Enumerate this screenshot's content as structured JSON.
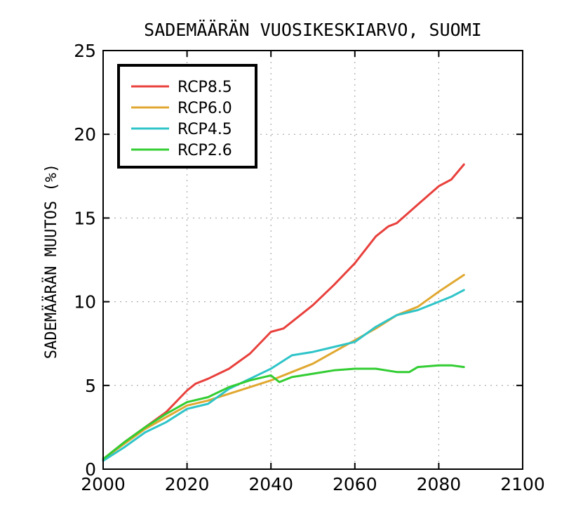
{
  "chart_data": {
    "type": "line",
    "title": "SADEMÄÄRÄN VUOSIKESKIARVO, SUOMI",
    "xlabel": "",
    "ylabel": "SADEMÄÄRÄN MUUTOS (%)",
    "xlim": [
      2000,
      2100
    ],
    "ylim": [
      0,
      25
    ],
    "xticks": [
      2000,
      2020,
      2040,
      2060,
      2080,
      2100
    ],
    "yticks": [
      0,
      5,
      10,
      15,
      20,
      25
    ],
    "grid": true,
    "legend_position": "top-left",
    "series": [
      {
        "name": "RCP8.5",
        "color": "#e8403c",
        "x": [
          2000,
          2005,
          2010,
          2015,
          2020,
          2022,
          2025,
          2030,
          2035,
          2040,
          2043,
          2045,
          2050,
          2055,
          2060,
          2065,
          2068,
          2070,
          2075,
          2080,
          2083,
          2086
        ],
        "y": [
          0.6,
          1.6,
          2.5,
          3.4,
          4.7,
          5.1,
          5.4,
          6.0,
          6.9,
          8.2,
          8.4,
          8.8,
          9.8,
          11.0,
          12.3,
          13.9,
          14.5,
          14.7,
          15.8,
          16.9,
          17.3,
          18.2
        ]
      },
      {
        "name": "RCP6.0",
        "color": "#e0a830",
        "x": [
          2000,
          2005,
          2010,
          2015,
          2020,
          2025,
          2030,
          2035,
          2040,
          2045,
          2050,
          2055,
          2060,
          2065,
          2070,
          2075,
          2080,
          2083,
          2086
        ],
        "y": [
          0.6,
          1.5,
          2.4,
          3.1,
          3.8,
          4.1,
          4.5,
          4.9,
          5.3,
          5.8,
          6.3,
          7.0,
          7.7,
          8.4,
          9.2,
          9.7,
          10.6,
          11.1,
          11.6
        ]
      },
      {
        "name": "RCP4.5",
        "color": "#2ec4c8",
        "x": [
          2000,
          2005,
          2010,
          2015,
          2020,
          2025,
          2030,
          2035,
          2040,
          2045,
          2050,
          2055,
          2060,
          2065,
          2070,
          2075,
          2080,
          2083,
          2086
        ],
        "y": [
          0.5,
          1.3,
          2.2,
          2.8,
          3.6,
          3.9,
          4.8,
          5.4,
          6.0,
          6.8,
          7.0,
          7.3,
          7.6,
          8.5,
          9.2,
          9.5,
          10.0,
          10.3,
          10.7
        ]
      },
      {
        "name": "RCP2.6",
        "color": "#32cd32",
        "x": [
          2000,
          2005,
          2010,
          2015,
          2020,
          2025,
          2030,
          2035,
          2040,
          2042,
          2045,
          2050,
          2055,
          2060,
          2065,
          2070,
          2073,
          2075,
          2080,
          2083,
          2086
        ],
        "y": [
          0.6,
          1.6,
          2.5,
          3.3,
          4.0,
          4.3,
          4.9,
          5.3,
          5.6,
          5.2,
          5.5,
          5.7,
          5.9,
          6.0,
          6.0,
          5.8,
          5.8,
          6.1,
          6.2,
          6.2,
          6.1
        ]
      }
    ]
  }
}
